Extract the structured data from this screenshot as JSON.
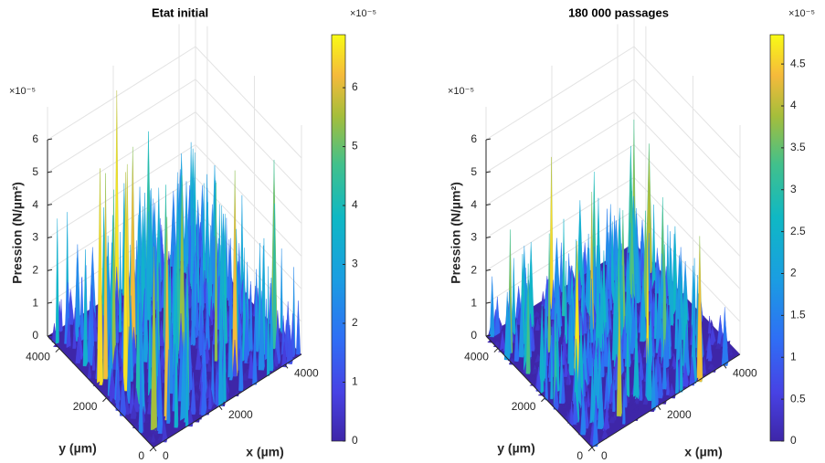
{
  "chart_data": [
    {
      "type": "surface",
      "title": "Etat initial",
      "x_label": "x (µm)",
      "y_label": "y (µm)",
      "z_label": "Pression (N/µm²)",
      "z_exponent": "×10⁻⁵",
      "xlim": [
        0,
        4500
      ],
      "xticks": [
        0,
        2000,
        4000
      ],
      "ylim": [
        0,
        4500
      ],
      "yticks": [
        0,
        2000,
        4000
      ],
      "zlim": [
        0,
        7
      ],
      "zticks": [
        0,
        1,
        2,
        3,
        4,
        5,
        6
      ],
      "colorbar_lim": [
        0,
        6.9
      ],
      "colorbar_ticks": [
        0,
        1,
        2,
        3,
        4,
        5,
        6
      ],
      "colorbar_exponent": "×10⁻⁵"
    },
    {
      "type": "surface",
      "title": "180 000 passages",
      "x_label": "x (µm)",
      "y_label": "y (µm)",
      "z_label": "Pression (N/µm²)",
      "z_exponent": "×10⁻⁵",
      "xlim": [
        0,
        4500
      ],
      "xticks": [
        0,
        2000,
        4000
      ],
      "ylim": [
        0,
        4500
      ],
      "yticks": [
        0,
        2000,
        4000
      ],
      "zlim": [
        0,
        7
      ],
      "zticks": [
        0,
        1,
        2,
        3,
        4,
        5,
        6
      ],
      "colorbar_lim": [
        0,
        4.85
      ],
      "colorbar_ticks": [
        0,
        0.5,
        1,
        1.5,
        2,
        2.5,
        3,
        3.5,
        4,
        4.5
      ],
      "colorbar_exponent": "×10⁻⁵"
    }
  ]
}
